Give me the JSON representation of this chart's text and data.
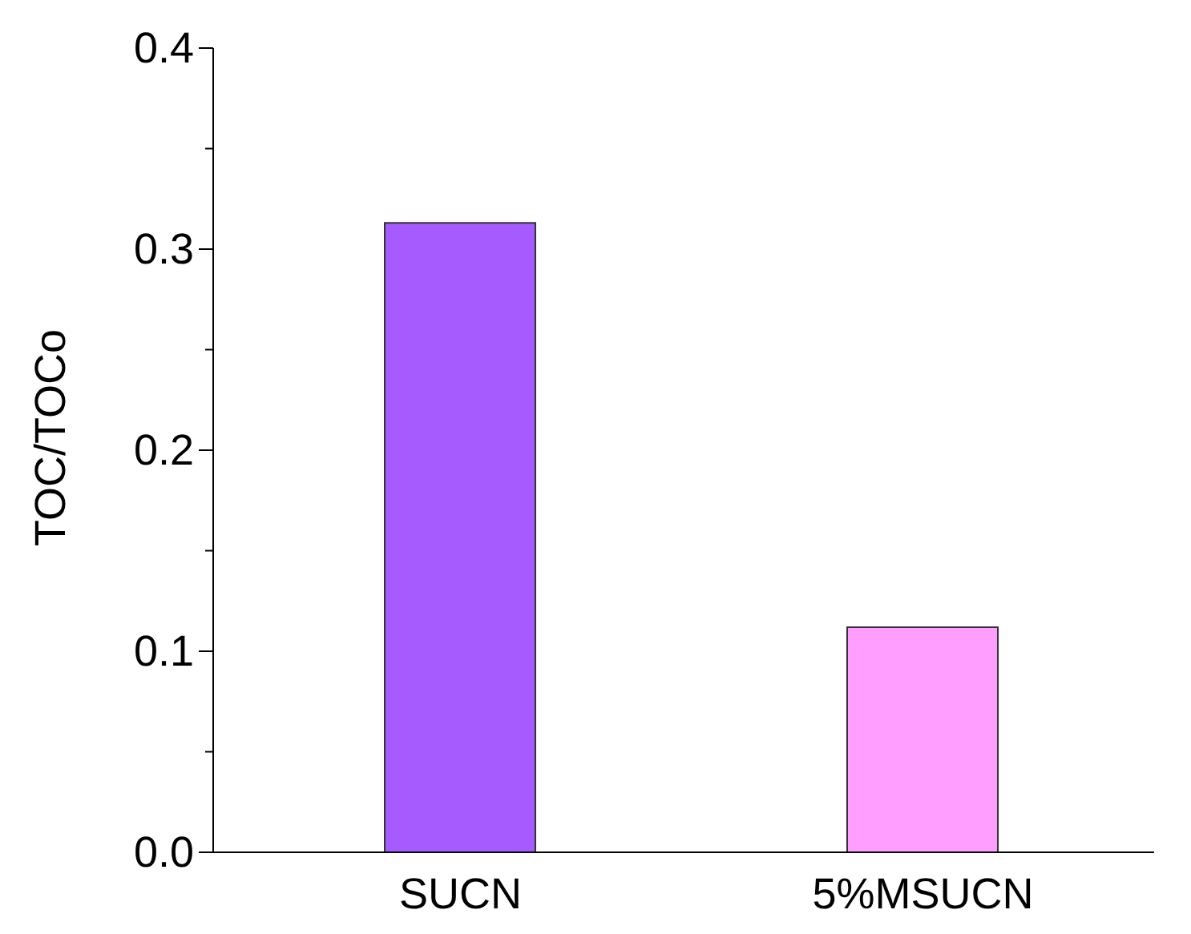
{
  "chart_data": {
    "type": "bar",
    "ylabel": "TOC/TOCo",
    "categories": [
      "SUCN",
      "5%MSUCN"
    ],
    "values": [
      0.313,
      0.112
    ],
    "colors": [
      "#a55bff",
      "#ff9eff"
    ],
    "ylim": [
      0,
      0.4
    ],
    "yticks": [
      {
        "value": 0,
        "label": "0.0"
      },
      {
        "value": 0.05,
        "label": null
      },
      0.1,
      {
        "value": 0.15,
        "label": null
      },
      0.2,
      {
        "value": 0.25,
        "label": null
      },
      0.3,
      {
        "value": 0.35,
        "label": null
      },
      0.4
    ],
    "grid": false,
    "legend": false
  }
}
